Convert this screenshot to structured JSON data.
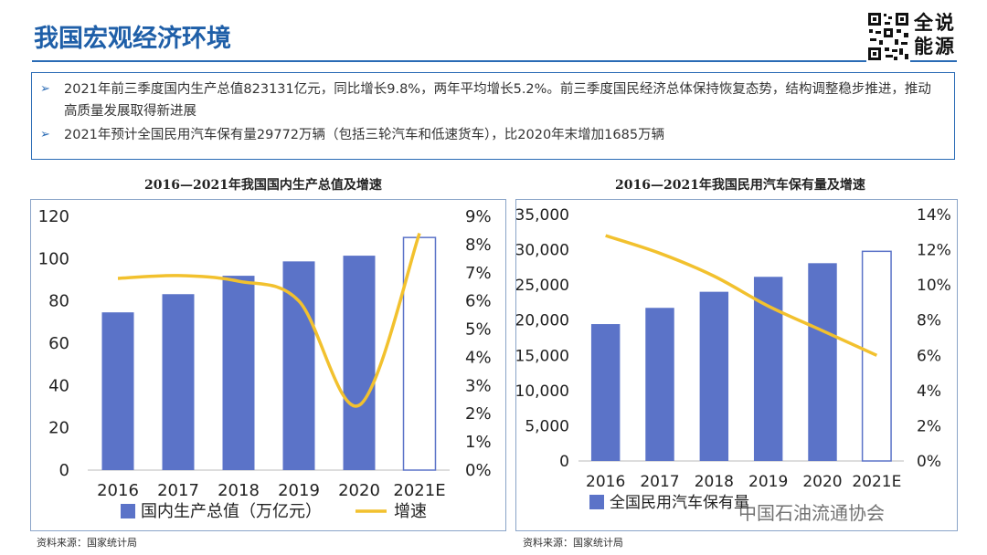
{
  "header": {
    "title": "我国宏观经济环境",
    "logo_text": [
      "全说",
      "能源"
    ]
  },
  "bullets": [
    "2021年前三季度国内生产总值823131亿元，同比增长9.8%，两年平均增长5.2%。前三季度国民经济总体保持恢复态势，结构调整稳步推进，推动高质量发展取得新进展",
    "2021年预计全国民用汽车保有量29772万辆（包括三轮汽车和低速货车），比2020年末增加1685万辆"
  ],
  "chart_data": [
    {
      "type": "bar",
      "title": "2016—2021年我国国内生产总值及增速",
      "categories": [
        "2016",
        "2017",
        "2018",
        "2019",
        "2020",
        "2021E"
      ],
      "series": [
        {
          "name": "国内生产总值（万亿元）",
          "type": "bar",
          "axis": "left",
          "values": [
            74.6,
            83.2,
            91.9,
            98.7,
            101.4,
            110
          ]
        },
        {
          "name": "增速",
          "type": "line",
          "axis": "right",
          "values": [
            6.8,
            6.9,
            6.7,
            6.0,
            2.3,
            8.4
          ]
        }
      ],
      "ylim": [
        0,
        120
      ],
      "y_ticks": [
        "0",
        "20",
        "40",
        "60",
        "80",
        "100",
        "120"
      ],
      "y2lim": [
        0,
        9
      ],
      "y2_ticks": [
        "0%",
        "1%",
        "2%",
        "3%",
        "4%",
        "5%",
        "6%",
        "7%",
        "8%",
        "9%"
      ],
      "estimate_last_bar": true,
      "bar_color": "#5b73c8",
      "line_color": "#f2c12e",
      "legend": "bottom",
      "source": "资料来源：国家统计局"
    },
    {
      "type": "bar",
      "title": "2016—2021年我国民用汽车保有量及增速",
      "categories": [
        "2016",
        "2017",
        "2018",
        "2019",
        "2020",
        "2021E"
      ],
      "series": [
        {
          "name": "全国民用汽车保有量",
          "type": "bar",
          "axis": "left",
          "values": [
            19440,
            21743,
            24028,
            26150,
            28087,
            29772
          ]
        },
        {
          "name": "",
          "type": "line",
          "axis": "right",
          "values": [
            12.8,
            11.8,
            10.5,
            8.8,
            7.4,
            6.0
          ]
        }
      ],
      "ylim": [
        0,
        35000
      ],
      "y_ticks": [
        "0",
        "5,000",
        "10,000",
        "15,000",
        "20,000",
        "25,000",
        "30,000",
        "35,000"
      ],
      "y2lim": [
        0,
        14
      ],
      "y2_ticks": [
        "0%",
        "2%",
        "4%",
        "6%",
        "8%",
        "10%",
        "12%",
        "14%"
      ],
      "estimate_last_bar": true,
      "bar_color": "#5b73c8",
      "line_color": "#f2c12e",
      "legend": "bottom",
      "source": "资料来源：国家统计局"
    }
  ],
  "watermark": "中国石油流通协会"
}
